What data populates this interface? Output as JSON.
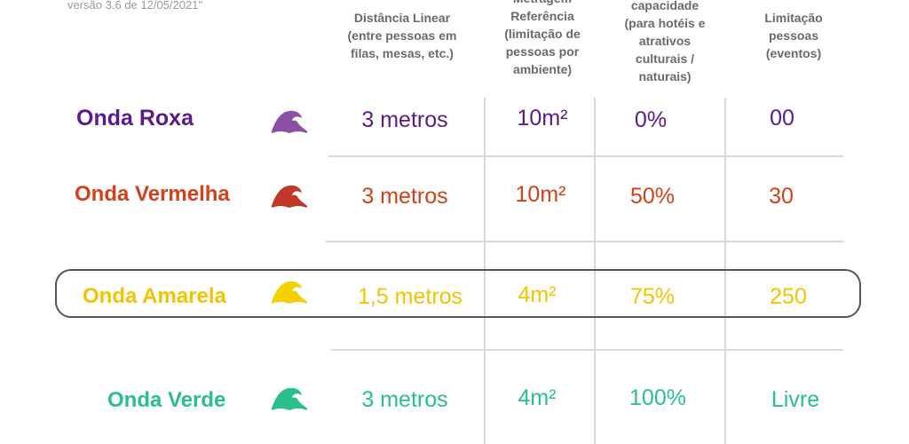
{
  "version_note": "versão 3.6 de 12/05/2021\"",
  "headers": [
    "Distância Linear\n(entre pessoas em\nfilas, mesas, etc.)",
    "Metragem\nReferência\n(limitação de\npessoas por\nambiente)",
    "capacidade\n(para hotéis e\natrativos\nculturais /\nnaturais)",
    "Limitação\npessoas\n(eventos)"
  ],
  "rows": [
    {
      "name": "Onda Roxa",
      "color": "#5b1a8a",
      "icon": "wave-icon",
      "icon_color": "#8b4fa3",
      "distance": "3 metros",
      "area": "10m²",
      "capacity": "0%",
      "limit": "00"
    },
    {
      "name": "Onda Vermelha",
      "color": "#d4401a",
      "icon": "wave-icon",
      "icon_color": "#c0392b",
      "distance": "3 metros",
      "area": "10m²",
      "capacity": "50%",
      "limit": "30"
    },
    {
      "name": "Onda Amarela",
      "color": "#f2c400",
      "icon": "wave-icon",
      "icon_color": "#f5d000",
      "distance": "1,5 metros",
      "area": "4m²",
      "capacity": "75%",
      "limit": "250"
    },
    {
      "name": "Onda Verde",
      "color": "#2bbf8a",
      "icon": "wave-icon",
      "icon_color": "#2bbf8a",
      "distance": "3 metros",
      "area": "4m²",
      "capacity": "100%",
      "limit": "Livre"
    }
  ]
}
